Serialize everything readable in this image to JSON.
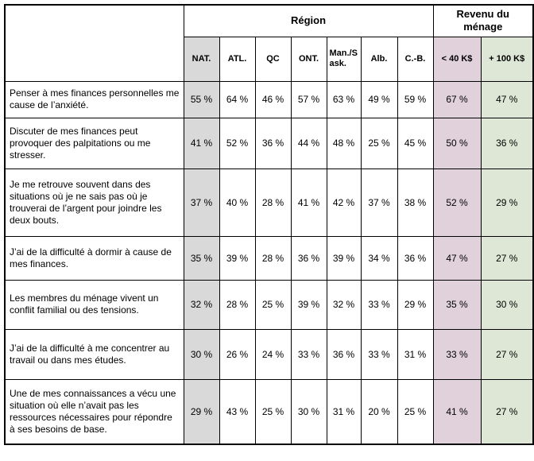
{
  "colors": {
    "background": "#ffffff",
    "border": "#000000",
    "text": "#000000",
    "nat_column_bg": "#d9d9d9",
    "low_income_column_bg": "#e1d1db",
    "high_income_column_bg": "#dee7d5"
  },
  "chart_data": {
    "type": "table",
    "column_groups": [
      {
        "id": "region",
        "label": "Région",
        "span": 7
      },
      {
        "id": "income",
        "label": "Revenu du ménage",
        "span": 2
      }
    ],
    "columns": [
      {
        "id": "nat",
        "label": "NAT."
      },
      {
        "id": "atl",
        "label": "ATL."
      },
      {
        "id": "qc",
        "label": "QC"
      },
      {
        "id": "ont",
        "label": "ONT."
      },
      {
        "id": "mansask",
        "label": "Man./Sask."
      },
      {
        "id": "alb",
        "label": "Alb."
      },
      {
        "id": "cb",
        "label": "C.-B."
      },
      {
        "id": "low-income",
        "label": "< 40 K$"
      },
      {
        "id": "high-income",
        "label": "+ 100 K$"
      }
    ],
    "unit": "%",
    "value_suffix": " %",
    "rows": [
      {
        "label": "Penser à mes finances personnelles me cause de l’anxiété.",
        "values": [
          55,
          64,
          46,
          57,
          63,
          49,
          59,
          67,
          47
        ]
      },
      {
        "label": "Discuter de mes finances peut provoquer des palpitations ou me stresser.",
        "values": [
          41,
          52,
          36,
          44,
          48,
          25,
          45,
          50,
          36
        ]
      },
      {
        "label": "Je me retrouve souvent dans des situations où je ne sais pas où je trouverai de l’argent pour joindre les deux bouts.",
        "values": [
          37,
          40,
          28,
          41,
          42,
          37,
          38,
          52,
          29
        ]
      },
      {
        "label": "J’ai de la difficulté à dormir à cause de mes finances.",
        "values": [
          35,
          39,
          28,
          36,
          39,
          34,
          36,
          47,
          27
        ]
      },
      {
        "label": "Les membres du ménage vivent un conflit familial ou des tensions.",
        "values": [
          32,
          28,
          25,
          39,
          32,
          33,
          29,
          35,
          30
        ]
      },
      {
        "label": "J’ai de la difficulté à me concentrer au travail ou dans mes études.",
        "values": [
          30,
          26,
          24,
          33,
          36,
          33,
          31,
          33,
          27
        ]
      },
      {
        "label": "Une de mes connaissances a vécu une situation où elle n’avait pas les ressources nécessaires pour répondre à ses besoins de base.",
        "values": [
          29,
          43,
          25,
          30,
          31,
          20,
          25,
          41,
          27
        ]
      }
    ]
  }
}
